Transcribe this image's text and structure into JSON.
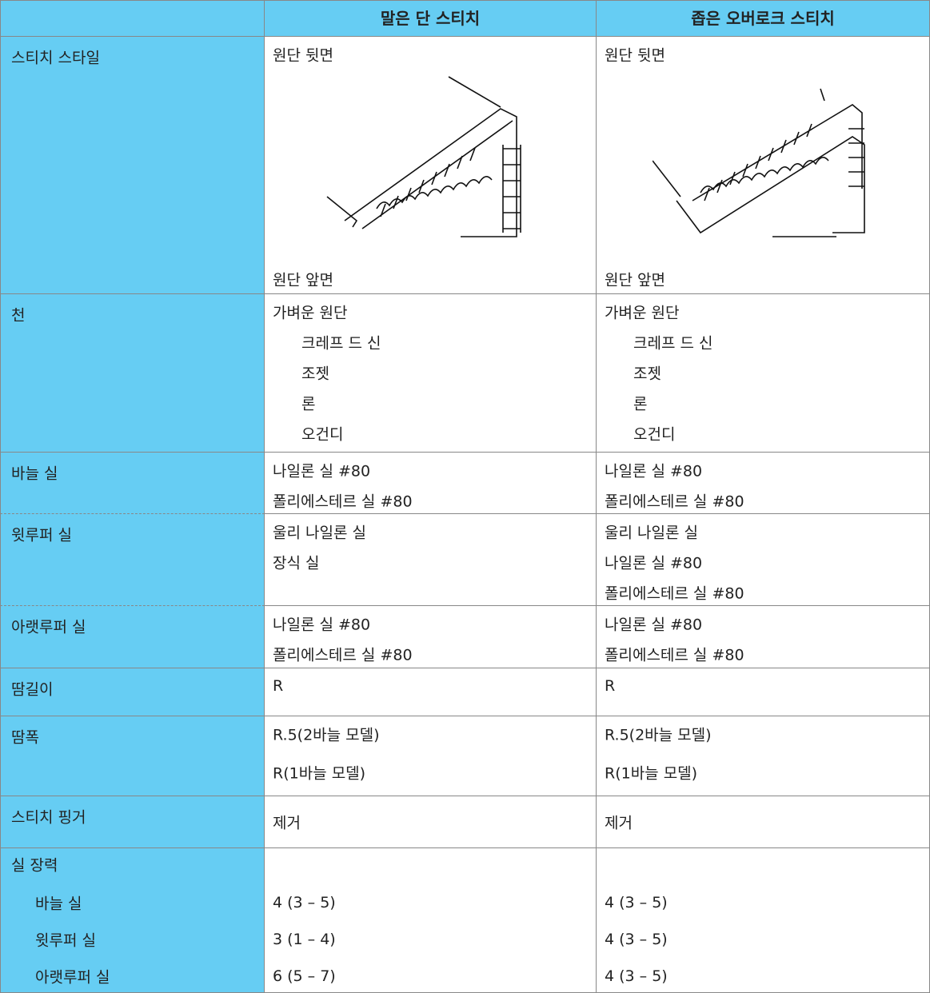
{
  "header": [
    "말은 단 스티치",
    "좁은 오버로크 스티치"
  ],
  "rows": [
    {
      "label": "스티치 스타일",
      "cells": [
        [
          "원단 뒷면",
          "원단 앞면"
        ],
        [
          "원단 뒷면",
          "원단 앞면"
        ]
      ]
    },
    {
      "label": "천",
      "cells": [
        [
          "가벼운 원단",
          "크레프 드 신",
          "조젯",
          "론",
          "오건디"
        ],
        [
          "가벼운 원단",
          "크레프 드 신",
          "조젯",
          "론",
          "오건디"
        ]
      ]
    },
    {
      "label": "바늘 실",
      "cells": [
        [
          "나일론 실 #80",
          "폴리에스테르 실 #80"
        ],
        [
          "나일론 실 #80",
          "폴리에스테르 실 #80"
        ]
      ]
    },
    {
      "label": "윗루퍼 실",
      "cells": [
        [
          "울리 나일론 실",
          "장식 실"
        ],
        [
          "울리 나일론 실",
          "나일론 실 #80",
          "폴리에스테르 실 #80"
        ]
      ]
    },
    {
      "label": "아랫루퍼 실",
      "cells": [
        [
          "나일론 실 #80",
          "폴리에스테르 실 #80"
        ],
        [
          "나일론 실 #80",
          "폴리에스테르 실 #80"
        ]
      ]
    },
    {
      "label": "땀길이",
      "cells": [
        [
          "R"
        ],
        [
          "R"
        ]
      ]
    },
    {
      "label": "땀폭",
      "cells": [
        [
          "R.5(2바늘 모델)",
          "R(1바늘 모델)"
        ],
        [
          "R.5(2바늘 모델)",
          "R(1바늘 모델)"
        ]
      ]
    },
    {
      "label": "스티치 핑거",
      "cells": [
        [
          "제거"
        ],
        [
          "제거"
        ]
      ]
    }
  ],
  "tension": {
    "label": "실 장력",
    "items": [
      {
        "label": "바늘 실",
        "values": [
          "4 (3 – 5)",
          "4 (3 – 5)"
        ]
      },
      {
        "label": "윗루퍼 실",
        "values": [
          "3 (1 – 4)",
          "4 (3 – 5)"
        ]
      },
      {
        "label": "아랫루퍼 실",
        "values": [
          "6 (5 – 7)",
          "4 (3 – 5)"
        ]
      }
    ]
  }
}
